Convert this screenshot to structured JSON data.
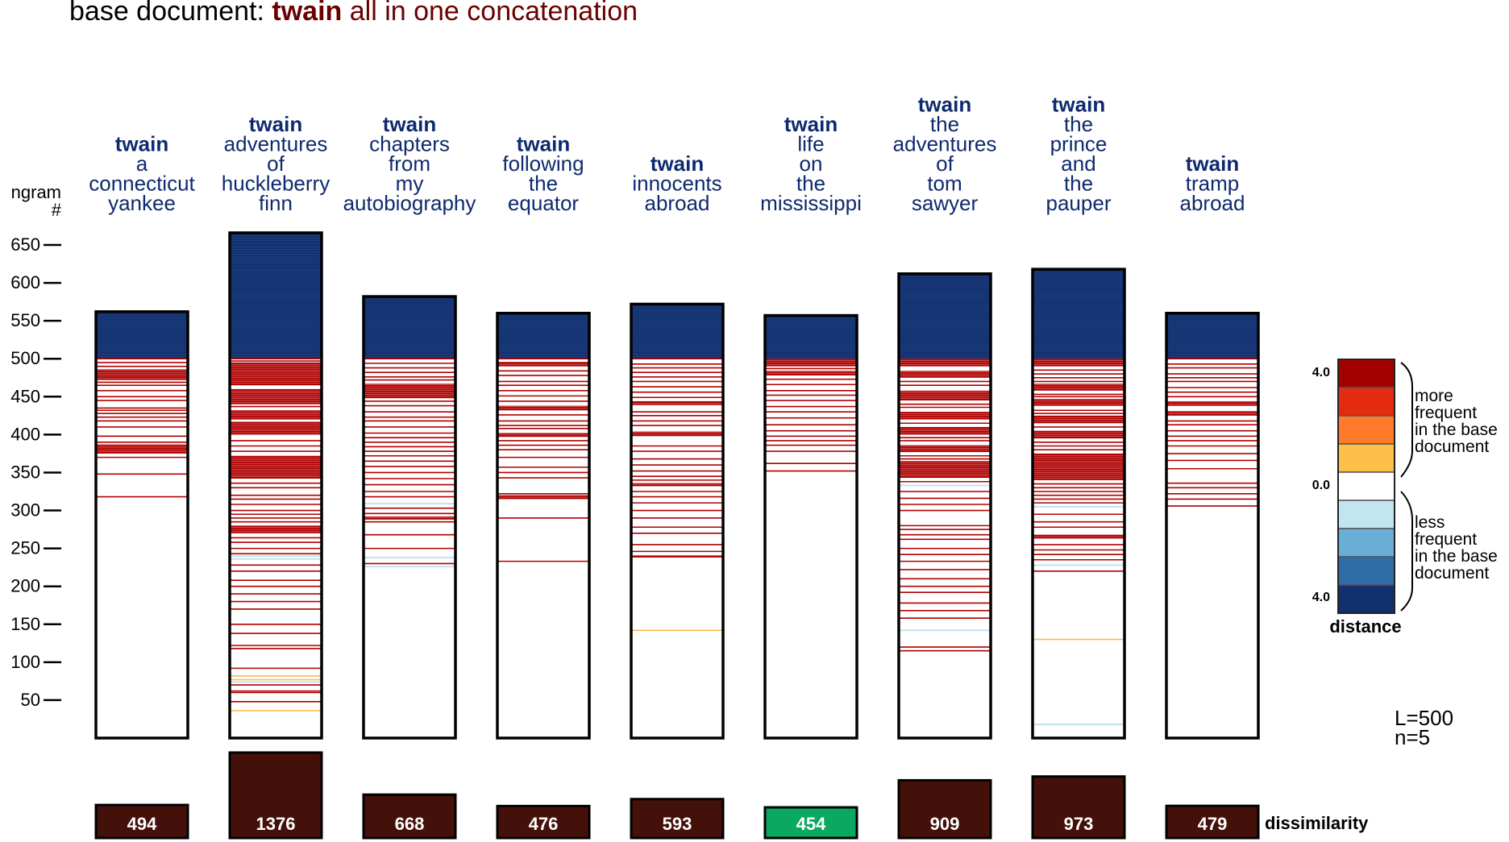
{
  "title": {
    "prefix": "base document: ",
    "author": "twain",
    "rest": " all in one concatenation"
  },
  "colors": {
    "title_prefix": "#000000",
    "title_highlight": "#6b0000",
    "header_blue": "#0e2a6e",
    "less_blue": "#12306e",
    "more_red": "#b00000",
    "more_orange": "#ffb94a",
    "less_light": "#bfe3ef",
    "dissim_fill": "#44110a",
    "dissim_best": "#0aa860",
    "scale": [
      "#a30000",
      "#e32b10",
      "#ff7a2a",
      "#ffc04a",
      "#ffffff",
      "#c3e5f0",
      "#6aaed6",
      "#2f6ca8",
      "#12306e"
    ]
  },
  "y_axis": {
    "label_line1": "ngram",
    "label_line2": "#",
    "ticks": [
      "650",
      "600",
      "550",
      "500",
      "450",
      "400",
      "350",
      "300",
      "250",
      "200",
      "150",
      "100",
      "50"
    ]
  },
  "chart_data": {
    "type": "heatmap",
    "ylim": [
      0,
      660
    ],
    "baseline_L": 500,
    "categories": [
      {
        "author": "twain",
        "title_lines": [
          "a",
          "connecticut",
          "yankee"
        ],
        "total": 562,
        "dissimilarity": 494,
        "red_solid": [
          [
            472,
            486
          ],
          [
            375,
            387
          ]
        ],
        "red_lines": [
          500,
          495,
          490,
          469,
          465,
          458,
          450,
          445,
          435,
          432,
          428,
          423,
          418,
          410,
          398,
          390,
          370,
          348,
          318
        ],
        "orange_lines": [],
        "light_lines": []
      },
      {
        "author": "twain",
        "title_lines": [
          "adventures",
          "of",
          "huckleberry",
          "finn"
        ],
        "total": 666,
        "dissimilarity": 1376,
        "red_solid": [
          [
            465,
            495
          ],
          [
            440,
            460
          ],
          [
            420,
            432
          ],
          [
            400,
            415
          ],
          [
            342,
            372
          ],
          [
            270,
            280
          ]
        ],
        "red_lines": [
          500,
          497,
          437,
          416,
          392,
          385,
          378,
          336,
          330,
          320,
          315,
          308,
          300,
          295,
          290,
          285,
          264,
          258,
          250,
          243,
          228,
          220,
          208,
          200,
          190,
          180,
          170,
          150,
          138,
          122,
          118,
          92,
          70,
          62,
          60,
          48
        ],
        "orange_lines": [
          82,
          77,
          36
        ],
        "light_lines": [
          240,
          236,
          74
        ]
      },
      {
        "author": "twain",
        "title_lines": [
          "chapters",
          "from",
          "my",
          "autobiography"
        ],
        "total": 582,
        "dissimilarity": 668,
        "red_solid": [
          [
            448,
            467
          ],
          [
            288,
            292
          ]
        ],
        "red_lines": [
          500,
          494,
          488,
          482,
          476,
          472,
          444,
          438,
          430,
          423,
          418,
          410,
          402,
          396,
          390,
          384,
          378,
          372,
          365,
          358,
          350,
          342,
          334,
          325,
          318,
          303,
          296,
          285,
          268,
          250,
          230
        ],
        "orange_lines": [],
        "light_lines": [
          309,
          238,
          226
        ]
      },
      {
        "author": "twain",
        "title_lines": [
          "following",
          "the",
          "equator"
        ],
        "total": 560,
        "dissimilarity": 476,
        "red_solid": [
          [
            490,
            496
          ],
          [
            432,
            438
          ],
          [
            397,
            402
          ],
          [
            315,
            320
          ]
        ],
        "red_lines": [
          500,
          484,
          478,
          470,
          465,
          458,
          451,
          444,
          426,
          418,
          412,
          408,
          392,
          386,
          380,
          370,
          357,
          350,
          343,
          322,
          290,
          233
        ],
        "orange_lines": [],
        "light_lines": []
      },
      {
        "author": "twain",
        "title_lines": [
          "innocents",
          "abroad"
        ],
        "total": 572,
        "dissimilarity": 593,
        "red_solid": [
          [
            439,
            444
          ],
          [
            398,
            404
          ],
          [
            332,
            336
          ],
          [
            238,
            241
          ]
        ],
        "red_lines": [
          500,
          493,
          488,
          482,
          476,
          470,
          463,
          456,
          449,
          430,
          425,
          418,
          412,
          385,
          378,
          368,
          360,
          352,
          345,
          340,
          325,
          318,
          310,
          300,
          290,
          278,
          270,
          255,
          246
        ],
        "orange_lines": [
          142
        ],
        "light_lines": []
      },
      {
        "author": "twain",
        "title_lines": [
          "life",
          "on",
          "the",
          "mississippi"
        ],
        "total": 557,
        "dissimilarity": 454,
        "red_solid": [
          [
            490,
            500
          ],
          [
            478,
            484
          ]
        ],
        "red_lines": [
          487,
          473,
          466,
          458,
          452,
          445,
          437,
          430,
          422,
          413,
          405,
          398,
          392,
          386,
          378,
          362,
          352
        ],
        "orange_lines": [],
        "light_lines": []
      },
      {
        "author": "twain",
        "title_lines": [
          "the",
          "adventures",
          "of",
          "tom",
          "sawyer"
        ],
        "total": 612,
        "dissimilarity": 909,
        "red_solid": [
          [
            490,
            500
          ],
          [
            475,
            484
          ],
          [
            445,
            458
          ],
          [
            420,
            430
          ],
          [
            400,
            410
          ],
          [
            377,
            386
          ],
          [
            343,
            365
          ]
        ],
        "red_lines": [
          470,
          465,
          440,
          436,
          415,
          396,
          392,
          372,
          368,
          338,
          325,
          316,
          308,
          300,
          280,
          275,
          268,
          262,
          250,
          242,
          233,
          222,
          210,
          200,
          192,
          178,
          168,
          158,
          120,
          115
        ],
        "orange_lines": [],
        "light_lines": [
          333,
          142
        ]
      },
      {
        "author": "twain",
        "title_lines": [
          "the",
          "prince",
          "and",
          "the",
          "pauper"
        ],
        "total": 618,
        "dissimilarity": 973,
        "red_solid": [
          [
            490,
            500
          ],
          [
            458,
            467
          ],
          [
            438,
            447
          ],
          [
            415,
            425
          ],
          [
            395,
            405
          ],
          [
            340,
            375
          ],
          [
            263,
            268
          ]
        ],
        "red_lines": [
          485,
          480,
          475,
          470,
          453,
          450,
          432,
          428,
          410,
          390,
          385,
          380,
          335,
          330,
          325,
          320,
          315,
          310,
          295,
          285,
          278,
          255,
          248,
          242,
          235,
          220
        ],
        "orange_lines": [
          130
        ],
        "light_lines": [
          305,
          228,
          18
        ]
      },
      {
        "author": "twain",
        "title_lines": [
          "tramp",
          "abroad"
        ],
        "total": 560,
        "dissimilarity": 479,
        "red_solid": [
          [
            438,
            444
          ],
          [
            425,
            431
          ]
        ],
        "red_lines": [
          500,
          493,
          488,
          480,
          475,
          470,
          462,
          456,
          450,
          418,
          413,
          405,
          398,
          392,
          385,
          375,
          366,
          355,
          336,
          330,
          322,
          315,
          306
        ],
        "orange_lines": [],
        "light_lines": []
      }
    ]
  },
  "dissimilarity_label": "dissimilarity",
  "legend": {
    "top_value": "4.0",
    "mid_value": "0.0",
    "bottom_value": "4.0",
    "more_lines": [
      "more",
      "frequent",
      "in the base",
      "document"
    ],
    "less_lines": [
      "less",
      "frequent",
      "in the base",
      "document"
    ],
    "caption": "distance"
  },
  "params": {
    "line1": "L=500",
    "line2": "n=5"
  }
}
